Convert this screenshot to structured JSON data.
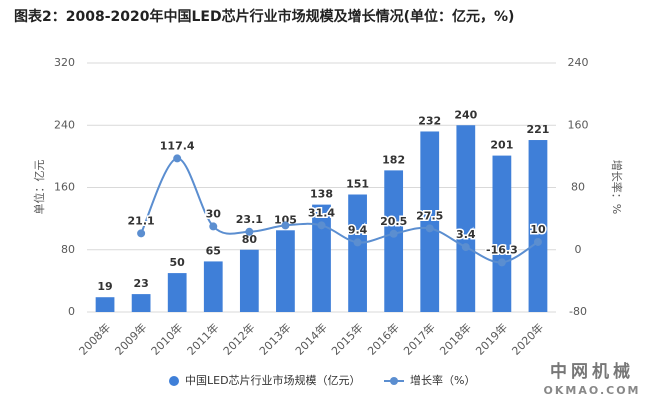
{
  "chart_data": {
    "type": "combo",
    "title": "图表2：2008-2020年中国LED芯片行业市场规模及增长情况(单位：亿元，%)",
    "y_label": "单位：亿元",
    "y2_label": "增长率：%",
    "categories": [
      "2008年",
      "2009年",
      "2010年",
      "2011年",
      "2012年",
      "2013年",
      "2014年",
      "2015年",
      "2016年",
      "2017年",
      "2018年",
      "2019年",
      "2020年"
    ],
    "series": [
      {
        "name": "中国LED芯片行业市场规模（亿元）",
        "type": "bar",
        "color": "#3f7fd8",
        "values": [
          19,
          23,
          50,
          65,
          80,
          105,
          138,
          151,
          182,
          232,
          240,
          201,
          221
        ]
      },
      {
        "name": "增长率（%）",
        "type": "line",
        "axis": "y2",
        "color": "#5b8ed0",
        "values": [
          null,
          21.1,
          117.4,
          30,
          23.1,
          31.3,
          31.4,
          9.4,
          20.5,
          27.5,
          3.4,
          -16.3,
          10
        ],
        "value_labels": [
          null,
          "21.1",
          "117.4",
          "30",
          "23.1",
          null,
          "31.4",
          "9.4",
          "20.5",
          "27.5",
          "3.4",
          "-16.3",
          "10"
        ]
      }
    ],
    "ylim": [
      0,
      320
    ],
    "yticks": [
      0,
      80,
      160,
      240,
      320
    ],
    "y2lim": [
      -80,
      240
    ],
    "y2ticks": [
      -80,
      0,
      80,
      160,
      240
    ],
    "grid": true
  },
  "watermark": {
    "name": "中网机械",
    "url": "OKMAO.COM"
  }
}
